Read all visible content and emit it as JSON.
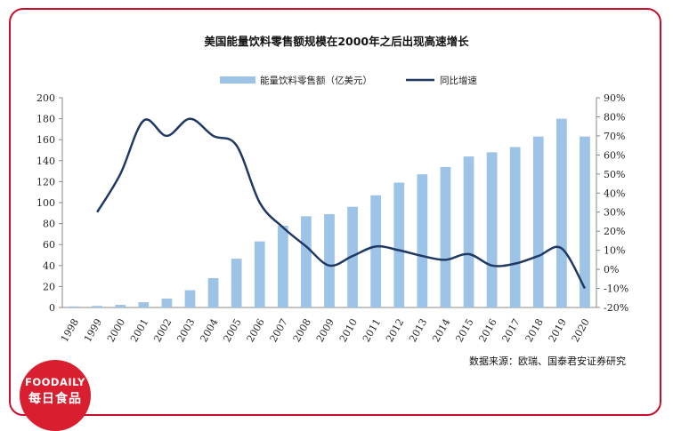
{
  "brand": {
    "logo_line1": "FOODAILY",
    "logo_line2": "每日食品"
  },
  "colors": {
    "border": "#c8102e",
    "bar": "#9dc3e6",
    "line": "#1f3864",
    "logo_bg": "#d81e2f"
  },
  "chart_data": {
    "type": "bar",
    "title": "美国能量饮料零售额规模在2000年之后出现高速增长",
    "source": "数据来源：欧瑞、国泰君安证券研究",
    "categories": [
      "1998",
      "1999",
      "2000",
      "2001",
      "2002",
      "2003",
      "2004",
      "2005",
      "2006",
      "2007",
      "2008",
      "2009",
      "2010",
      "2011",
      "2012",
      "2013",
      "2014",
      "2015",
      "2016",
      "2017",
      "2018",
      "2019",
      "2020"
    ],
    "legend_position": "top",
    "series": [
      {
        "name": "能量饮料零售额（亿美元）",
        "type": "bar",
        "axis": "left",
        "values": [
          1,
          1.5,
          2.5,
          5,
          8.5,
          16.5,
          28,
          46.5,
          63,
          78,
          87,
          89,
          96,
          107,
          119,
          127,
          134,
          144,
          148,
          153,
          163,
          180,
          163
        ]
      },
      {
        "name": "同比增速",
        "type": "line",
        "axis": "right",
        "values": [
          null,
          0.3,
          0.5,
          0.78,
          0.7,
          0.79,
          0.7,
          0.65,
          0.35,
          0.22,
          0.12,
          0.02,
          0.07,
          0.12,
          0.1,
          0.07,
          0.05,
          0.08,
          0.02,
          0.03,
          0.07,
          0.11,
          -0.1
        ]
      }
    ],
    "y_left": {
      "ylim": [
        0,
        200
      ],
      "ticks": [
        "0",
        "20",
        "40",
        "60",
        "80",
        "100",
        "120",
        "140",
        "160",
        "180",
        "200"
      ]
    },
    "y_right": {
      "ylim": [
        -0.2,
        0.9
      ],
      "ticks": [
        "-20%",
        "-10%",
        "0%",
        "10%",
        "20%",
        "30%",
        "40%",
        "50%",
        "60%",
        "70%",
        "80%",
        "90%"
      ]
    },
    "grid": false
  }
}
